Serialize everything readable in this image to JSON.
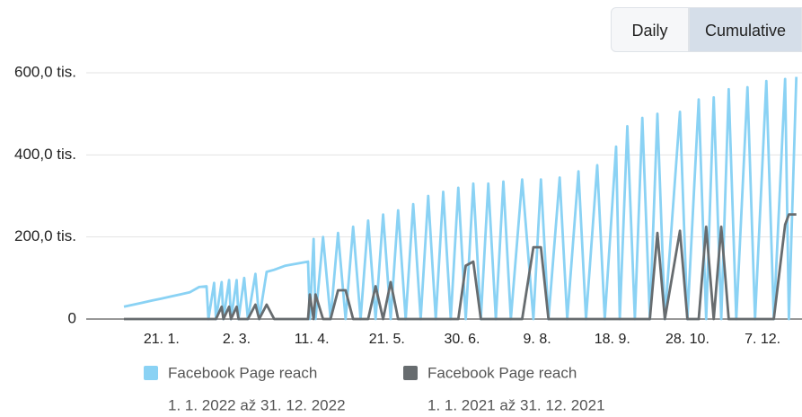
{
  "controls": {
    "options": [
      "Daily",
      "Cumulative"
    ],
    "selected": "Cumulative"
  },
  "chart_data": {
    "type": "line",
    "x": [
      0,
      5,
      10,
      15,
      20,
      25,
      30,
      35,
      40,
      44,
      45,
      48,
      49,
      52,
      53,
      56,
      57,
      60,
      61,
      64,
      66,
      70,
      72,
      76,
      80,
      86,
      92,
      98,
      99,
      101,
      102,
      106,
      110,
      114,
      118,
      122,
      126,
      130,
      134,
      138,
      142,
      146,
      150,
      154,
      158,
      162,
      166,
      170,
      174,
      178,
      182,
      186,
      190,
      194,
      198,
      202,
      206,
      212,
      218,
      222,
      226,
      232,
      236,
      242,
      246,
      252,
      256,
      262,
      264,
      268,
      272,
      276,
      280,
      284,
      288,
      296,
      300,
      306,
      310,
      314,
      318,
      322,
      326,
      332,
      336,
      342,
      346,
      352,
      354,
      358
    ],
    "series": [
      {
        "name": "Facebook Page reach",
        "period": "1. 1. 2022 až 31. 12. 2022",
        "color": "#8ad2f4",
        "values": [
          30000,
          35000,
          40000,
          45000,
          50000,
          55000,
          60000,
          65000,
          78000,
          80000,
          0,
          88000,
          0,
          90000,
          0,
          95000,
          0,
          95000,
          0,
          100000,
          0,
          110000,
          0,
          115000,
          120000,
          130000,
          135000,
          140000,
          0,
          195000,
          0,
          200000,
          0,
          210000,
          0,
          225000,
          0,
          240000,
          0,
          255000,
          0,
          265000,
          0,
          280000,
          0,
          300000,
          0,
          310000,
          0,
          320000,
          0,
          330000,
          0,
          330000,
          0,
          335000,
          0,
          340000,
          0,
          340000,
          0,
          345000,
          0,
          360000,
          0,
          375000,
          0,
          420000,
          0,
          470000,
          0,
          490000,
          0,
          500000,
          0,
          505000,
          0,
          535000,
          0,
          540000,
          0,
          560000,
          0,
          565000,
          0,
          580000,
          0,
          585000,
          0,
          590000
        ]
      },
      {
        "name": "Facebook Page reach",
        "period": "1. 1. 2021 až 31. 12. 2021",
        "color": "#676c6f",
        "values": [
          0,
          0,
          0,
          0,
          0,
          0,
          0,
          0,
          0,
          0,
          0,
          0,
          0,
          30000,
          0,
          30000,
          0,
          30000,
          0,
          0,
          0,
          35000,
          0,
          35000,
          0,
          0,
          0,
          0,
          60000,
          0,
          60000,
          0,
          0,
          70000,
          70000,
          0,
          0,
          0,
          80000,
          0,
          90000,
          0,
          0,
          0,
          0,
          0,
          0,
          0,
          0,
          0,
          130000,
          140000,
          0,
          0,
          0,
          0,
          0,
          0,
          175000,
          175000,
          0,
          0,
          0,
          0,
          0,
          0,
          0,
          0,
          0,
          0,
          0,
          0,
          0,
          210000,
          0,
          215000,
          0,
          0,
          225000,
          0,
          225000,
          0,
          0,
          0,
          0,
          0,
          0,
          230000,
          255000,
          255000
        ]
      }
    ],
    "xlim": [
      0,
      361
    ],
    "xticks": [
      {
        "value": 20,
        "label": "21. 1."
      },
      {
        "value": 60,
        "label": "2. 3."
      },
      {
        "value": 100,
        "label": "11. 4."
      },
      {
        "value": 140,
        "label": "21. 5."
      },
      {
        "value": 180,
        "label": "30. 6."
      },
      {
        "value": 220,
        "label": "9. 8."
      },
      {
        "value": 260,
        "label": "18. 9."
      },
      {
        "value": 300,
        "label": "28. 10."
      },
      {
        "value": 340,
        "label": "7. 12."
      }
    ],
    "ylim": [
      0,
      600000
    ],
    "yticks": [
      0,
      {
        "value": 200000,
        "label": "200,0 tis."
      },
      {
        "value": 400000,
        "label": "400,0 tis."
      },
      {
        "value": 600000,
        "label": "600,0 tis."
      }
    ],
    "grid": true
  }
}
